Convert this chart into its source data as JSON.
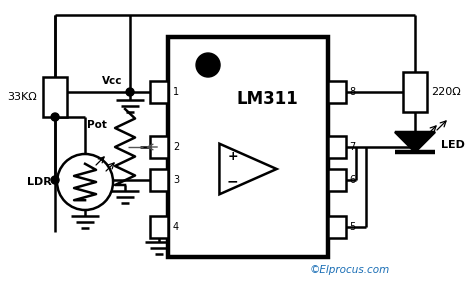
{
  "bg_color": "#ffffff",
  "watermark": "©Elprocus.com",
  "watermark_color": "#1a6eb5",
  "ic_label": "LM311",
  "resistor_label": "220Ω",
  "resistor_label2": "33KΩ",
  "vcc_label": "Vcc",
  "pot_label": "Pot",
  "ldr_label": "LDR",
  "led_label": "LED",
  "lc": "#000000",
  "lw": 1.8,
  "tlw": 3.2,
  "figsize": [
    4.74,
    2.87
  ],
  "dpi": 100
}
